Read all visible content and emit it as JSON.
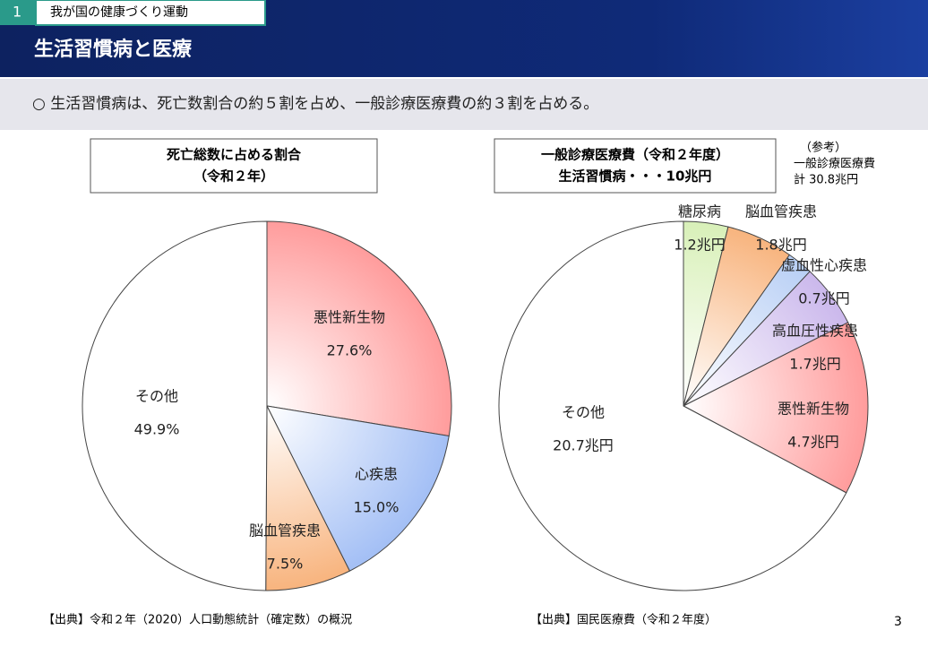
{
  "header": {
    "section_number": "1",
    "section": "我が国の健康づくり運動",
    "title": "生活習慣病と医療"
  },
  "summary": "○ 生活習慣病は、死亡数割合の約５割を占め、一般診療医療費の約３割を占める。",
  "note": [
    "（参考）",
    "一般診療医療費",
    "計 30.8兆円"
  ],
  "sources": [
    "【出典】令和２年（2020）人口動態統計（確定数）の概況",
    "【出典】国民医療費（令和２年度）"
  ],
  "page_number": "3",
  "chart_data": [
    {
      "type": "pie",
      "title": "死亡総数に占める割合",
      "subtitle": "（令和２年）",
      "categories": [
        "悪性新生物",
        "心疾患",
        "脳血管疾患",
        "その他"
      ],
      "values": [
        27.6,
        15.0,
        7.5,
        49.9
      ],
      "value_labels": [
        "27.6%",
        "15.0%",
        "7.5%",
        "49.9%"
      ],
      "colors": [
        "#ff9c9c",
        "#a3bff5",
        "#f8b47e",
        "#ffffff"
      ]
    },
    {
      "type": "pie",
      "title": "一般診療医療費（令和２年度）",
      "subtitle": "生活習慣病・・・10兆円",
      "categories": [
        "糖尿病",
        "脳血管疾患",
        "虚血性心疾患",
        "高血圧性疾患",
        "悪性新生物",
        "その他"
      ],
      "values": [
        1.2,
        1.8,
        0.7,
        1.7,
        4.7,
        20.7
      ],
      "value_labels": [
        "1.2兆円",
        "1.8兆円",
        "0.7兆円",
        "1.7兆円",
        "4.7兆円",
        "20.7兆円"
      ],
      "colors": [
        "#d8f0b8",
        "#f8b47e",
        "#b8cff5",
        "#cbb8ec",
        "#ff9c9c",
        "#ffffff"
      ]
    }
  ]
}
